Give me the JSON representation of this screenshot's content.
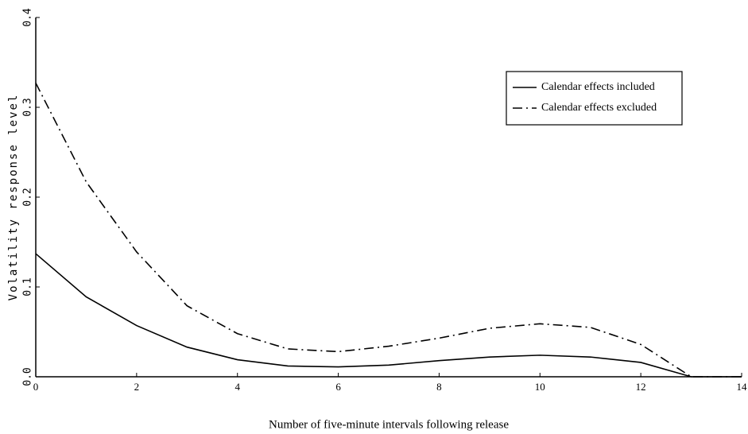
{
  "chart_data": {
    "type": "line",
    "x_label": "Number of five-minute intervals following release",
    "y_label": "Volatility response level",
    "x": [
      0,
      1,
      2,
      3,
      4,
      5,
      6,
      7,
      8,
      9,
      10,
      11,
      12,
      13,
      14
    ],
    "series": [
      {
        "name": "Calendar effects included",
        "color": "#000000",
        "style": "solid",
        "values": [
          0.137,
          0.089,
          0.057,
          0.033,
          0.019,
          0.012,
          0.011,
          0.013,
          0.018,
          0.022,
          0.024,
          0.022,
          0.016,
          0.0,
          0.0
        ]
      },
      {
        "name": "Calendar effects excluded",
        "color": "#000000",
        "style": "dashdot",
        "values": [
          0.327,
          0.217,
          0.139,
          0.079,
          0.048,
          0.031,
          0.028,
          0.034,
          0.043,
          0.054,
          0.059,
          0.055,
          0.036,
          0.0,
          0.0
        ]
      }
    ],
    "xlim": [
      0,
      14
    ],
    "xticks": [
      0,
      2,
      4,
      6,
      8,
      10,
      12,
      14
    ],
    "ylim": [
      0,
      0.4
    ],
    "yticks": [
      {
        "value": 0,
        "label": "0.0"
      },
      0.1,
      0.2,
      0.3,
      0.4
    ],
    "legend": "upper right",
    "grid": false
  }
}
